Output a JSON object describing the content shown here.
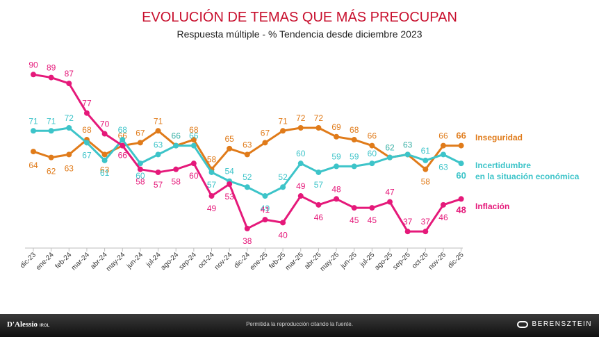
{
  "page": {
    "title": "EVOLUCIÓN DE TEMAS QUE MÁS PREOCUPAN",
    "subtitle": "Respuesta múltiple - % Tendencia desde diciembre 2023"
  },
  "legend": {
    "inseguridad": "Inseguridad",
    "incertidumbre_line1": "Incertidumbre",
    "incertidumbre_line2": "en la situación económica",
    "inflacion": "Inflación"
  },
  "footer": {
    "note": "Permitida la reproducción citando la fuente.",
    "logo_left": "D'Alessio",
    "logo_left_tag": "IROL",
    "logo_right": "BERENSZTEIN"
  },
  "chart_data": {
    "type": "line",
    "categories": [
      "dic-23",
      "ene-24",
      "feb-24",
      "mar-24",
      "abr-24",
      "may-24",
      "jun-24",
      "jul-24",
      "ago-24",
      "sep-24",
      "oct-24",
      "nov-24",
      "dic-24",
      "ene-25",
      "feb-25",
      "mar-25",
      "abr-25",
      "may-25",
      "jun-25",
      "jul-25",
      "ago-25",
      "sep-25",
      "oct-25",
      "nov-25",
      "dic-25"
    ],
    "ylim": [
      30,
      95
    ],
    "grid": false,
    "legend_position": "right",
    "series": [
      {
        "name": "Inseguridad",
        "color": "#e07b1a",
        "values": [
          64,
          62,
          63,
          68,
          63,
          66,
          67,
          71,
          66,
          68,
          58,
          65,
          63,
          67,
          71,
          72,
          72,
          69,
          68,
          66,
          62,
          63,
          58,
          66,
          66
        ]
      },
      {
        "name": "Incertidumbre en la situación económica",
        "color": "#3dc4c9",
        "values": [
          71,
          71,
          72,
          67,
          61,
          68,
          60,
          63,
          66,
          66,
          57,
          54,
          52,
          49,
          52,
          60,
          57,
          59,
          59,
          60,
          62,
          63,
          61,
          63,
          60
        ]
      },
      {
        "name": "Inflación",
        "color": "#e5197a",
        "values": [
          90,
          89,
          87,
          77,
          70,
          66,
          58,
          57,
          58,
          60,
          49,
          53,
          38,
          41,
          40,
          49,
          46,
          48,
          45,
          45,
          47,
          37,
          37,
          46,
          48
        ]
      }
    ]
  }
}
